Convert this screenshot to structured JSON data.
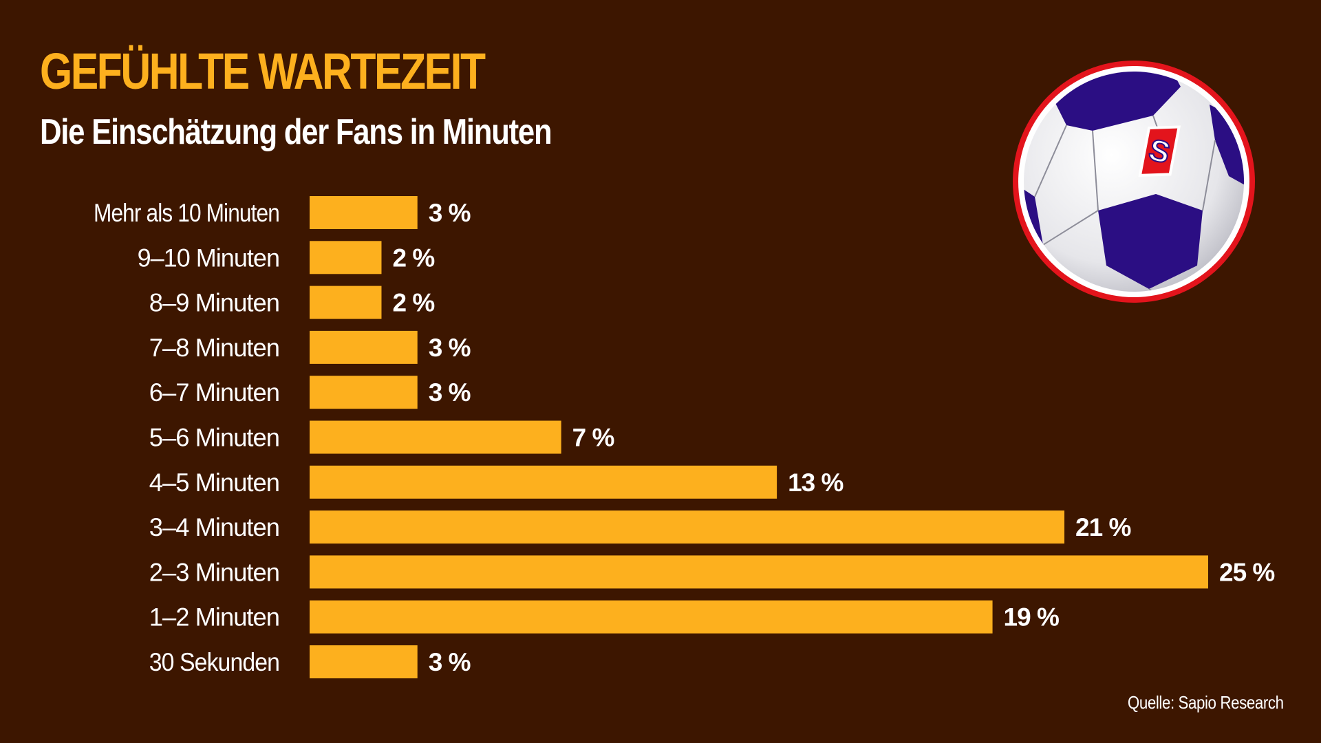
{
  "title": "GEFÜHLTE WARTEZEIT",
  "subtitle": "Die Einschätzung der Fans in Minuten",
  "source": "Quelle: Sapio Research",
  "colors": {
    "background": "#3d1600",
    "bar": "#fdb01e",
    "title": "#fdb01e",
    "text": "#ffffff",
    "ball_ring": "#e3141c",
    "ball_panel": "#2b0e83"
  },
  "logo": {
    "icon": "soccer-ball-logo-icon",
    "letter": "S"
  },
  "chart_data": {
    "type": "bar",
    "orientation": "horizontal",
    "title": "GEFÜHLTE WARTEZEIT",
    "subtitle": "Die Einschätzung der Fans in Minuten",
    "unit": "%",
    "categories": [
      "Mehr als 10 Minuten",
      "9–10 Minuten",
      "8–9 Minuten",
      "7–8 Minuten",
      "6–7 Minuten",
      "5–6 Minuten",
      "4–5 Minuten",
      "3–4 Minuten",
      "2–3 Minuten",
      "1–2 Minuten",
      "30 Sekunden"
    ],
    "values": [
      3,
      2,
      2,
      3,
      3,
      7,
      13,
      21,
      25,
      19,
      3
    ],
    "value_labels": [
      "3 %",
      "2 %",
      "2 %",
      "3 %",
      "3 %",
      "7 %",
      "13 %",
      "21 %",
      "25 %",
      "19 %",
      "3 %"
    ],
    "xlim": [
      0,
      25
    ],
    "grid": false,
    "legend": "none"
  }
}
